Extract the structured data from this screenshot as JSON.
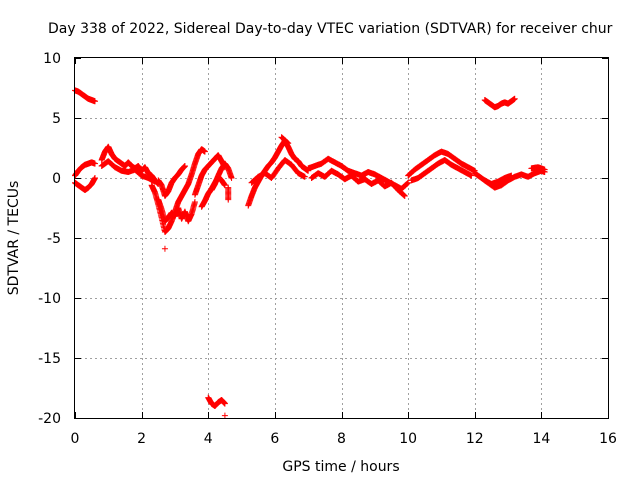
{
  "chart_data": {
    "type": "scatter",
    "title": "Day 338 of 2022, Sidereal Day-to-day VTEC variation (SDTVAR) for receiver chur",
    "xlabel": "GPS time / hours",
    "ylabel": "SDTVAR / TECUs",
    "xlim": [
      0,
      16
    ],
    "ylim": [
      -20,
      10
    ],
    "xticks": [
      0,
      2,
      4,
      6,
      8,
      10,
      12,
      14,
      16
    ],
    "yticks": [
      -20,
      -15,
      -10,
      -5,
      0,
      5,
      10
    ],
    "xtick_labels": [
      "0",
      "2",
      "4",
      "6",
      "8",
      "10",
      "12",
      "14",
      "16"
    ],
    "ytick_labels": [
      "-20",
      "-15",
      "-10",
      "-5",
      "0",
      "5",
      "10"
    ],
    "grid": true,
    "marker": "+",
    "series": [
      {
        "name": "SDTVAR",
        "color": "#ff0000",
        "segments": [
          {
            "x": [
              0.0,
              0.1,
              0.2,
              0.3,
              0.4,
              0.5,
              0.6
            ],
            "y": [
              7.3,
              7.2,
              7.0,
              6.8,
              6.6,
              6.5,
              6.4
            ]
          },
          {
            "x": [
              0.0,
              0.1,
              0.2,
              0.3,
              0.4,
              0.5,
              0.6
            ],
            "y": [
              0.2,
              0.6,
              0.9,
              1.1,
              1.2,
              1.3,
              1.2
            ]
          },
          {
            "x": [
              0.0,
              0.1,
              0.2,
              0.3,
              0.4,
              0.5,
              0.6
            ],
            "y": [
              -0.4,
              -0.6,
              -0.8,
              -1.0,
              -0.8,
              -0.5,
              0.0
            ]
          },
          {
            "x": [
              0.8,
              0.9,
              1.0,
              1.1,
              1.2,
              1.3,
              1.4,
              1.5,
              1.6,
              1.7,
              1.8,
              1.9,
              2.0,
              2.1,
              2.2,
              2.3,
              2.4,
              2.5
            ],
            "y": [
              1.5,
              2.2,
              2.6,
              2.0,
              1.6,
              1.4,
              1.2,
              1.0,
              1.3,
              1.0,
              0.8,
              1.0,
              0.6,
              0.9,
              0.4,
              0.2,
              -0.2,
              -0.5
            ]
          },
          {
            "x": [
              0.8,
              1.0,
              1.2,
              1.4,
              1.6,
              1.8,
              2.0,
              2.2,
              2.4
            ],
            "y": [
              1.0,
              1.4,
              0.9,
              0.6,
              0.5,
              0.7,
              0.2,
              0.0,
              -0.3
            ]
          },
          {
            "x": [
              2.3,
              2.4,
              2.5,
              2.6,
              2.7,
              2.8,
              2.9,
              3.0,
              3.1,
              3.2,
              3.3,
              3.4,
              3.5,
              3.6,
              3.7,
              3.8,
              3.9
            ],
            "y": [
              -0.6,
              -1.2,
              -2.2,
              -3.3,
              -4.5,
              -4.2,
              -3.6,
              -2.8,
              -2.0,
              -1.5,
              -1.0,
              -0.5,
              0.3,
              1.2,
              2.0,
              2.4,
              2.2
            ]
          },
          {
            "x": [
              2.5,
              2.6,
              2.7,
              2.8,
              2.9,
              3.0,
              3.1,
              3.2,
              3.3,
              3.4,
              3.5,
              3.6
            ],
            "y": [
              -1.8,
              -2.6,
              -3.6,
              -3.3,
              -2.9,
              -3.2,
              -2.5,
              -3.4,
              -2.8,
              -3.6,
              -3.0,
              -2.0
            ]
          },
          {
            "x": [
              2.5,
              2.6,
              2.7,
              2.8,
              2.9,
              3.0,
              3.1,
              3.2,
              3.3
            ],
            "y": [
              -0.2,
              -0.6,
              -1.5,
              -1.1,
              -0.4,
              0.0,
              0.3,
              0.7,
              1.0
            ]
          },
          {
            "x": [
              2.7
            ],
            "y": [
              -5.9
            ]
          },
          {
            "x": [
              3.6,
              3.7,
              3.8,
              3.9,
              4.0,
              4.1,
              4.2,
              4.3,
              4.4,
              4.5
            ],
            "y": [
              -1.4,
              -0.6,
              0.2,
              0.7,
              1.0,
              1.3,
              1.6,
              1.9,
              1.4,
              0.9
            ]
          },
          {
            "x": [
              3.8,
              3.9,
              4.0,
              4.1,
              4.2,
              4.3,
              4.4,
              4.5
            ],
            "y": [
              -2.4,
              -1.9,
              -1.3,
              -0.9,
              -0.4,
              0.1,
              -0.2,
              -0.6
            ]
          },
          {
            "x": [
              4.1,
              4.2,
              4.3,
              4.4,
              4.5,
              4.6,
              4.7
            ],
            "y": [
              -1.0,
              -0.5,
              0.2,
              0.8,
              1.2,
              0.8,
              0.0
            ]
          },
          {
            "x": [
              4.6,
              4.6
            ],
            "y": [
              -0.8,
              -1.8
            ]
          },
          {
            "x": [
              4.0,
              4.1,
              4.2,
              4.3,
              4.4,
              4.5
            ],
            "y": [
              -18.3,
              -18.8,
              -19.0,
              -18.7,
              -18.5,
              -18.8
            ]
          },
          {
            "x": [
              4.5
            ],
            "y": [
              -19.8
            ]
          },
          {
            "x": [
              5.2,
              5.3,
              5.4,
              5.5,
              5.6,
              5.7,
              5.8,
              5.9,
              6.0,
              6.1,
              6.2,
              6.3,
              6.4,
              6.5,
              6.6,
              6.7,
              6.8,
              6.9,
              7.0
            ],
            "y": [
              -2.3,
              -1.5,
              -0.8,
              -0.3,
              0.2,
              0.6,
              1.0,
              1.3,
              1.7,
              2.2,
              2.7,
              3.1,
              2.6,
              2.0,
              1.6,
              1.4,
              1.0,
              0.8,
              0.6
            ]
          },
          {
            "x": [
              5.3,
              5.5,
              5.7,
              5.9,
              6.1,
              6.3,
              6.5,
              6.7,
              6.9
            ],
            "y": [
              -0.4,
              0.1,
              0.4,
              0.0,
              0.8,
              1.5,
              1.1,
              0.4,
              0.1
            ]
          },
          {
            "x": [
              6.2,
              6.4
            ],
            "y": [
              3.4,
              2.9
            ]
          },
          {
            "x": [
              7.0,
              7.2,
              7.4,
              7.6,
              7.8,
              8.0,
              8.2,
              8.4,
              8.6,
              8.8,
              9.0,
              9.2,
              9.4,
              9.6,
              9.8,
              10.0
            ],
            "y": [
              0.8,
              1.0,
              1.2,
              1.6,
              1.3,
              1.0,
              0.6,
              0.4,
              0.2,
              0.5,
              0.3,
              0.0,
              -0.3,
              -0.6,
              -0.9,
              -0.4
            ]
          },
          {
            "x": [
              7.1,
              7.3,
              7.5,
              7.7,
              7.9,
              8.1,
              8.3,
              8.5,
              8.7,
              8.9,
              9.1,
              9.3,
              9.5,
              9.7,
              9.9
            ],
            "y": [
              0.0,
              0.4,
              0.1,
              0.6,
              0.3,
              -0.1,
              0.2,
              -0.3,
              -0.1,
              -0.5,
              -0.2,
              -0.7,
              -0.4,
              -1.0,
              -1.5
            ]
          },
          {
            "x": [
              10.0,
              10.2,
              10.4,
              10.6,
              10.8,
              11.0,
              11.2,
              11.4,
              11.6,
              11.8,
              12.0
            ],
            "y": [
              0.2,
              0.7,
              1.1,
              1.5,
              1.9,
              2.2,
              2.0,
              1.6,
              1.2,
              0.9,
              0.6
            ]
          },
          {
            "x": [
              10.1,
              10.3,
              10.5,
              10.7,
              10.9,
              11.1,
              11.3,
              11.5,
              11.7,
              11.9
            ],
            "y": [
              -0.2,
              0.0,
              0.4,
              0.8,
              1.2,
              1.5,
              1.1,
              0.8,
              0.5,
              0.2
            ]
          },
          {
            "x": [
              12.0,
              12.2,
              12.4,
              12.6,
              12.8,
              13.0,
              13.2,
              13.4,
              13.6,
              13.8,
              14.0,
              14.1
            ],
            "y": [
              0.4,
              0.0,
              -0.4,
              -0.8,
              -0.6,
              -0.2,
              0.1,
              0.3,
              0.1,
              0.4,
              0.6,
              0.5
            ]
          },
          {
            "x": [
              12.3,
              12.5,
              12.7,
              12.9,
              13.1
            ],
            "y": [
              -0.2,
              -0.5,
              -0.3,
              0.0,
              0.2
            ]
          },
          {
            "x": [
              13.7,
              13.9,
              14.1
            ],
            "y": [
              0.8,
              0.9,
              0.7
            ]
          },
          {
            "x": [
              12.3,
              12.4,
              12.5,
              12.6,
              12.7,
              12.8,
              12.9,
              13.0,
              13.1,
              13.2
            ],
            "y": [
              6.5,
              6.3,
              6.1,
              5.9,
              6.0,
              6.2,
              6.3,
              6.2,
              6.4,
              6.6
            ]
          }
        ]
      }
    ]
  }
}
